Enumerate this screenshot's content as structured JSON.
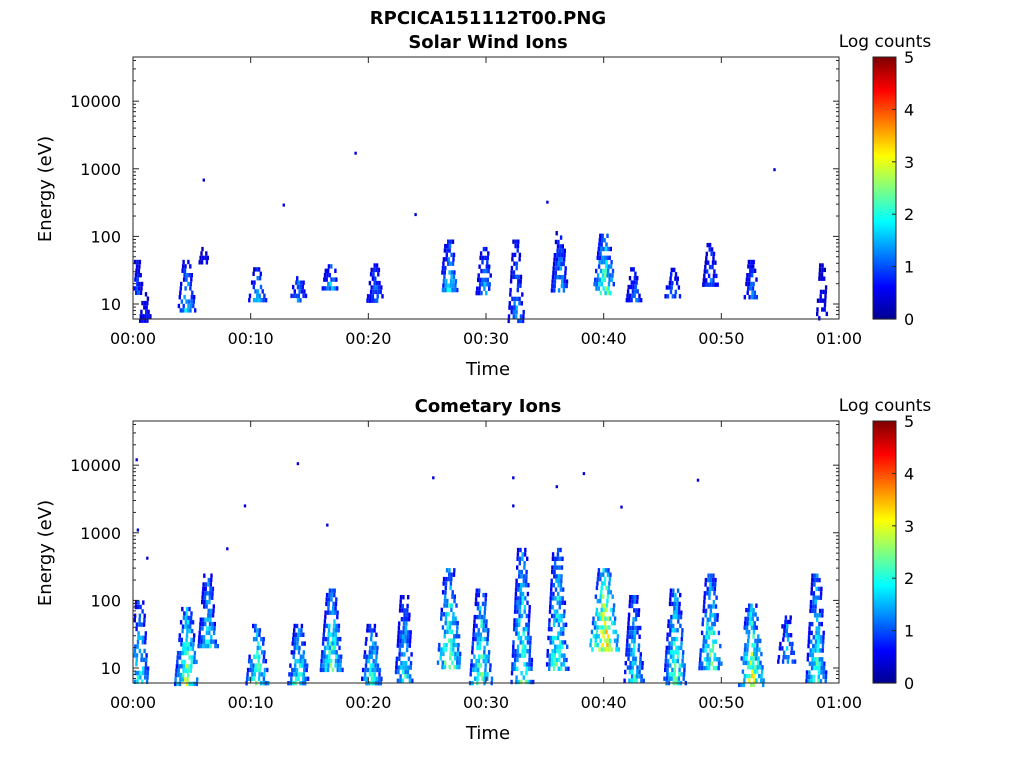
{
  "figure": {
    "title": "RPCICA151112T00.PNG"
  },
  "colors": {
    "background": "#ffffff",
    "axis": "#262626",
    "colormap": [
      "#00008f",
      "#0000ff",
      "#0080ff",
      "#00ffff",
      "#80ff80",
      "#ffff00",
      "#ff8000",
      "#ff0000",
      "#800000"
    ]
  },
  "chart_data": [
    {
      "type": "heatmap",
      "title": "Solar Wind Ions",
      "xlabel": "Time",
      "ylabel": "Energy (eV)",
      "x_ticks": [
        "00:00",
        "00:10",
        "00:20",
        "00:30",
        "00:40",
        "00:50",
        "01:00"
      ],
      "x_range_minutes": [
        0,
        60
      ],
      "y_scale": "log",
      "y_ticks": [
        10,
        100,
        1000,
        10000
      ],
      "y_tick_labels": [
        "10",
        "100",
        "1000",
        "10000"
      ],
      "y_range": [
        6,
        45000
      ],
      "colorbar": {
        "label": "Log counts",
        "range": [
          0,
          5
        ],
        "ticks": [
          "0",
          "1",
          "2",
          "3",
          "4",
          "5"
        ]
      },
      "clusters": [
        {
          "t": 0.3,
          "e_lo": 15,
          "e_hi": 45,
          "peak": 1.0
        },
        {
          "t": 1.0,
          "e_lo": 6,
          "e_hi": 15,
          "peak": 0.8
        },
        {
          "t": 4.5,
          "e_lo": 8,
          "e_hi": 45,
          "peak": 1.7
        },
        {
          "t": 6.0,
          "e_lo": 40,
          "e_hi": 70,
          "peak": 0.8
        },
        {
          "t": 10.5,
          "e_lo": 12,
          "e_hi": 35,
          "peak": 1.6
        },
        {
          "t": 14.0,
          "e_lo": 12,
          "e_hi": 30,
          "peak": 1.5
        },
        {
          "t": 16.7,
          "e_lo": 16,
          "e_hi": 45,
          "peak": 1.6
        },
        {
          "t": 20.5,
          "e_lo": 12,
          "e_hi": 40,
          "peak": 1.4
        },
        {
          "t": 26.8,
          "e_lo": 16,
          "e_hi": 90,
          "peak": 1.8
        },
        {
          "t": 29.8,
          "e_lo": 15,
          "e_hi": 70,
          "peak": 1.5
        },
        {
          "t": 32.5,
          "e_lo": 6,
          "e_hi": 90,
          "peak": 1.4
        },
        {
          "t": 36.2,
          "e_lo": 15,
          "e_hi": 120,
          "peak": 1.6
        },
        {
          "t": 40.0,
          "e_lo": 15,
          "e_hi": 110,
          "peak": 2.4
        },
        {
          "t": 42.5,
          "e_lo": 12,
          "e_hi": 35,
          "peak": 1.3
        },
        {
          "t": 45.8,
          "e_lo": 14,
          "e_hi": 40,
          "peak": 1.3
        },
        {
          "t": 49.0,
          "e_lo": 20,
          "e_hi": 80,
          "peak": 1.3
        },
        {
          "t": 52.5,
          "e_lo": 12,
          "e_hi": 45,
          "peak": 1.3
        },
        {
          "t": 58.5,
          "e_lo": 6,
          "e_hi": 40,
          "peak": 0.8
        }
      ],
      "dots": [
        {
          "t": 6.0,
          "e": 680,
          "v": 0.4
        },
        {
          "t": 12.8,
          "e": 290,
          "v": 0.4
        },
        {
          "t": 18.9,
          "e": 1700,
          "v": 0.4
        },
        {
          "t": 24.0,
          "e": 210,
          "v": 0.4
        },
        {
          "t": 35.2,
          "e": 320,
          "v": 0.4
        },
        {
          "t": 54.5,
          "e": 970,
          "v": 0.4
        }
      ]
    },
    {
      "type": "heatmap",
      "title": "Cometary Ions",
      "xlabel": "Time",
      "ylabel": "Energy (eV)",
      "x_ticks": [
        "00:00",
        "00:10",
        "00:20",
        "00:30",
        "00:40",
        "00:50",
        "01:00"
      ],
      "x_range_minutes": [
        0,
        60
      ],
      "y_scale": "log",
      "y_ticks": [
        10,
        100,
        1000,
        10000
      ],
      "y_tick_labels": [
        "10",
        "100",
        "1000",
        "10000"
      ],
      "y_range": [
        6,
        45000
      ],
      "colorbar": {
        "label": "Log counts",
        "range": [
          0,
          5
        ],
        "ticks": [
          "0",
          "1",
          "2",
          "3",
          "4",
          "5"
        ]
      },
      "clusters": [
        {
          "t": 0.5,
          "e_lo": 6,
          "e_hi": 100,
          "peak": 2.0
        },
        {
          "t": 4.5,
          "e_lo": 6,
          "e_hi": 80,
          "peak": 2.6
        },
        {
          "t": 6.3,
          "e_lo": 20,
          "e_hi": 250,
          "peak": 2.0
        },
        {
          "t": 10.5,
          "e_lo": 6,
          "e_hi": 45,
          "peak": 2.4
        },
        {
          "t": 14.0,
          "e_lo": 6,
          "e_hi": 45,
          "peak": 2.2
        },
        {
          "t": 16.8,
          "e_lo": 10,
          "e_hi": 150,
          "peak": 2.3
        },
        {
          "t": 20.2,
          "e_lo": 6,
          "e_hi": 45,
          "peak": 2.1
        },
        {
          "t": 23.0,
          "e_lo": 6,
          "e_hi": 120,
          "peak": 1.9
        },
        {
          "t": 26.8,
          "e_lo": 10,
          "e_hi": 300,
          "peak": 2.6
        },
        {
          "t": 29.5,
          "e_lo": 6,
          "e_hi": 150,
          "peak": 2.4
        },
        {
          "t": 33.0,
          "e_lo": 6,
          "e_hi": 600,
          "peak": 2.3
        },
        {
          "t": 36.0,
          "e_lo": 10,
          "e_hi": 600,
          "peak": 2.3
        },
        {
          "t": 40.0,
          "e_lo": 20,
          "e_hi": 300,
          "peak": 3.4
        },
        {
          "t": 42.5,
          "e_lo": 6,
          "e_hi": 120,
          "peak": 2.0
        },
        {
          "t": 46.0,
          "e_lo": 6,
          "e_hi": 150,
          "peak": 2.4
        },
        {
          "t": 49.0,
          "e_lo": 10,
          "e_hi": 250,
          "peak": 2.4
        },
        {
          "t": 52.5,
          "e_lo": 6,
          "e_hi": 90,
          "peak": 2.8
        },
        {
          "t": 55.5,
          "e_lo": 12,
          "e_hi": 60,
          "peak": 1.8
        },
        {
          "t": 58.0,
          "e_lo": 6,
          "e_hi": 250,
          "peak": 2.1
        }
      ],
      "dots": [
        {
          "t": 0.3,
          "e": 12000,
          "v": 0.4
        },
        {
          "t": 0.4,
          "e": 1100,
          "v": 0.4
        },
        {
          "t": 9.5,
          "e": 2500,
          "v": 0.4
        },
        {
          "t": 14.0,
          "e": 10500,
          "v": 0.4
        },
        {
          "t": 16.5,
          "e": 1300,
          "v": 0.4
        },
        {
          "t": 25.5,
          "e": 6500,
          "v": 0.4
        },
        {
          "t": 32.3,
          "e": 6500,
          "v": 0.4
        },
        {
          "t": 32.3,
          "e": 2500,
          "v": 0.4
        },
        {
          "t": 36.0,
          "e": 4800,
          "v": 0.4
        },
        {
          "t": 38.3,
          "e": 7500,
          "v": 0.4
        },
        {
          "t": 41.5,
          "e": 2400,
          "v": 0.4
        },
        {
          "t": 48.0,
          "e": 6000,
          "v": 0.4
        },
        {
          "t": 8.0,
          "e": 580,
          "v": 0.4
        },
        {
          "t": 1.2,
          "e": 420,
          "v": 0.4
        }
      ]
    }
  ]
}
